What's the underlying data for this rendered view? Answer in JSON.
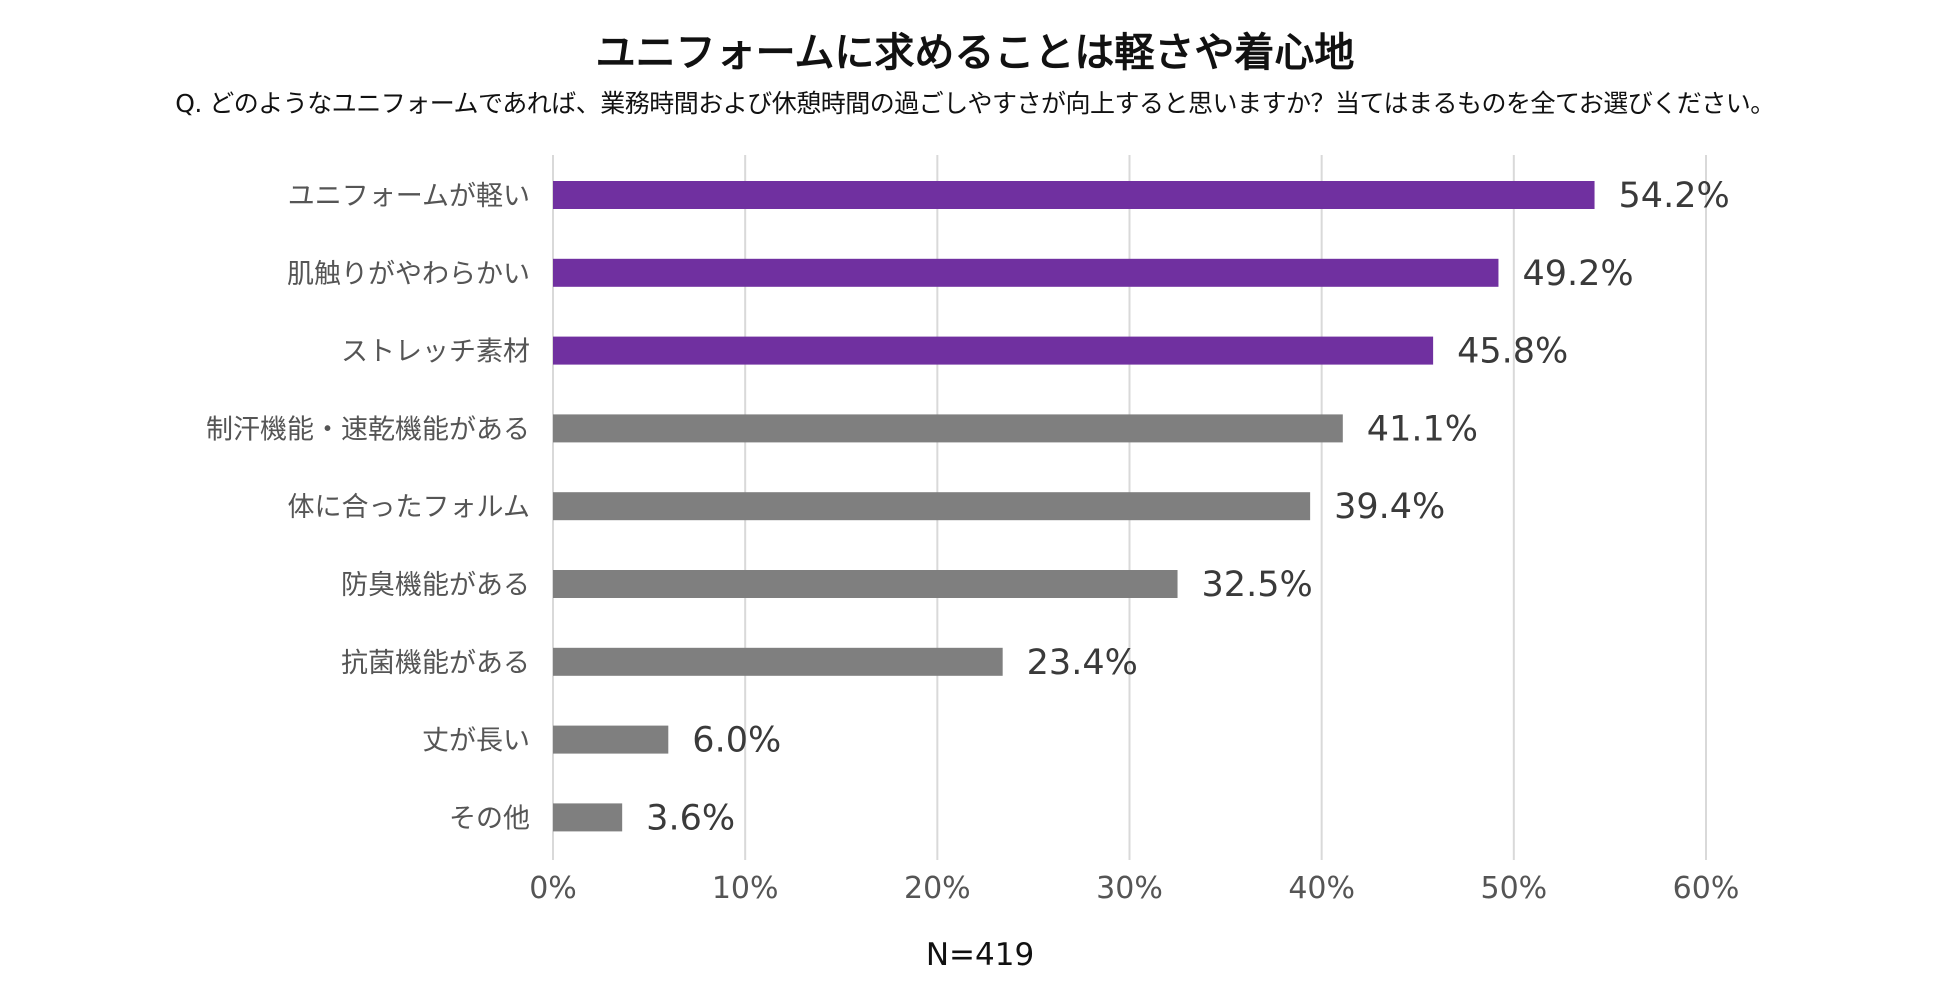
{
  "title": "ユニフォームに求めることは軽さや着心地",
  "subtitle": "Q. どのようなユニフォームであれば、業務時間および休憩時間の過ごしやすさが向上すると思いますか？当てはまるものを全てお選びください。",
  "sample_size": "N=419",
  "colors": {
    "highlight": "#7030a0",
    "default": "#7f7f7f",
    "grid": "#d9d9d9"
  },
  "chart_data": {
    "type": "bar",
    "orientation": "horizontal",
    "categories": [
      "ユニフォームが軽い",
      "肌触りがやわらかい",
      "ストレッチ素材",
      "制汗機能・速乾機能がある",
      "体に合ったフォルム",
      "防臭機能がある",
      "抗菌機能がある",
      "丈が長い",
      "その他"
    ],
    "values": [
      54.2,
      49.2,
      45.8,
      41.1,
      39.4,
      32.5,
      23.4,
      6.0,
      3.6
    ],
    "value_labels": [
      "54.2%",
      "49.2%",
      "45.8%",
      "41.1%",
      "39.4%",
      "32.5%",
      "23.4%",
      "6.0%",
      "3.6%"
    ],
    "highlighted": [
      true,
      true,
      true,
      false,
      false,
      false,
      false,
      false,
      false
    ],
    "xlim": [
      0,
      60
    ],
    "xticks": [
      0,
      10,
      20,
      30,
      40,
      50,
      60
    ],
    "xtick_labels": [
      "0%",
      "10%",
      "20%",
      "30%",
      "40%",
      "50%",
      "60%"
    ],
    "grid": "vertical"
  }
}
